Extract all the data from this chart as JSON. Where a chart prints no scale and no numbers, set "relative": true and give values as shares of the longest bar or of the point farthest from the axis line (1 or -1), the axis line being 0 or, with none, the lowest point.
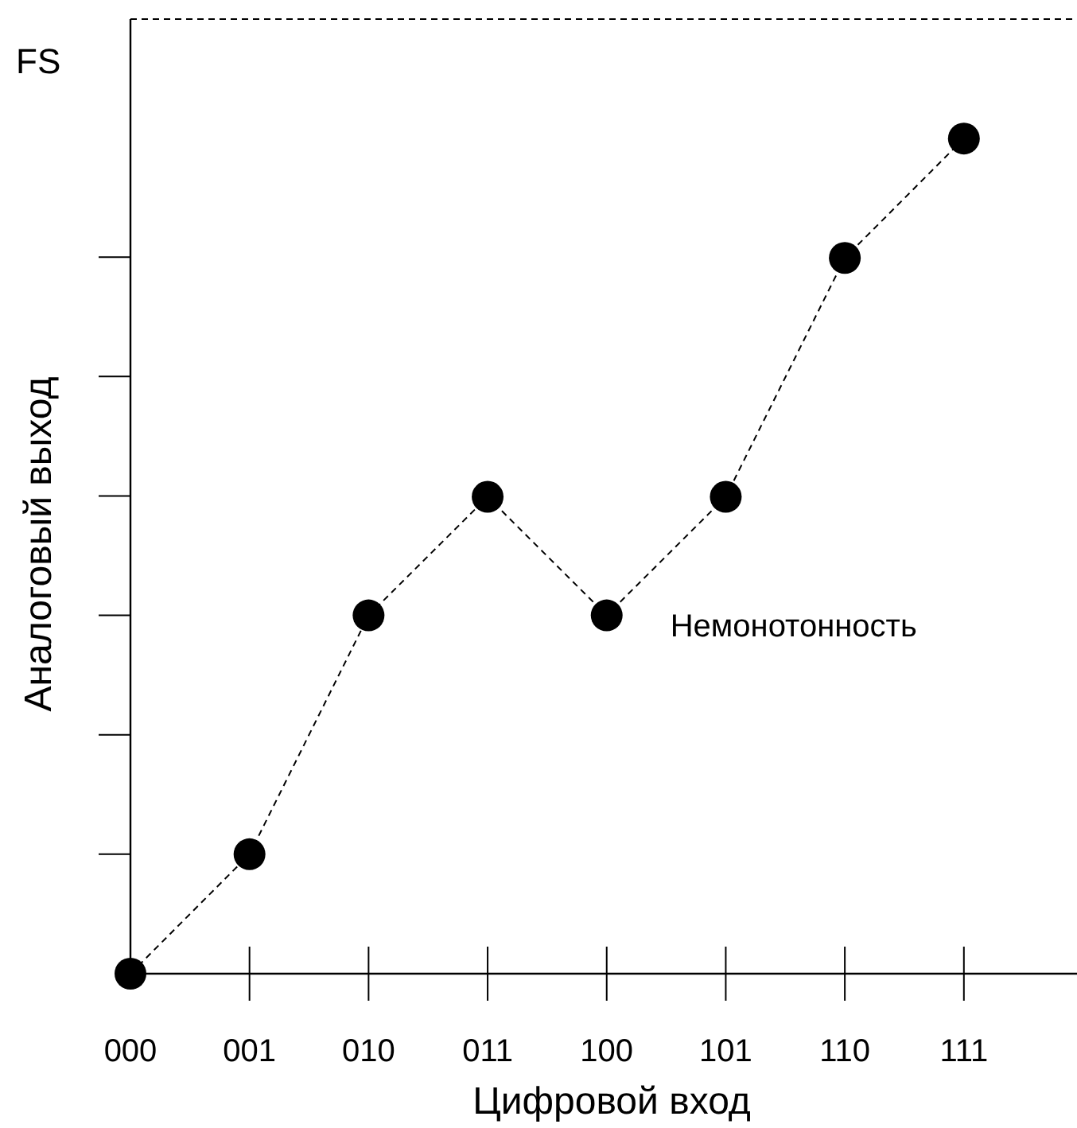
{
  "chart_data": {
    "type": "line",
    "xlabel": "Цифровой вход",
    "ylabel": "Аналоговый выход",
    "categories": [
      "000",
      "001",
      "010",
      "011",
      "100",
      "101",
      "110",
      "111"
    ],
    "series": [
      {
        "color": "#000000",
        "values": [
          0,
          0.143,
          0.429,
          0.571,
          0.429,
          0.571,
          0.857,
          1
        ]
      }
    ],
    "relative": true,
    "marker": "circle",
    "line_style": "dashed",
    "grid": false,
    "ref_lines": [
      {
        "axis": "y",
        "value": 1.143,
        "label": "FS",
        "line_style": "dashed",
        "color": "#000000"
      }
    ],
    "annotations": [
      {
        "text": "Немонотонность",
        "x": "100",
        "y": 0.429
      }
    ]
  }
}
